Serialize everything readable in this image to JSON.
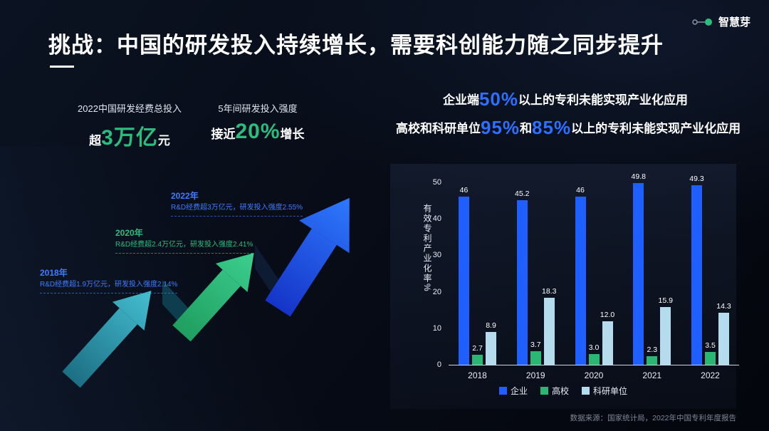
{
  "slide": {
    "title": "挑战：中国的研发投入持续增长，需要科创能力随之同步提升",
    "logo_text": "智慧芽",
    "footer": "数据来源：国家统计局，2022年中国专利年度报告",
    "accent_blue": "#2e6fff",
    "accent_green": "#2bbd7e"
  },
  "stats": [
    {
      "label": "2022中国研发经费总投入",
      "prefix": "超",
      "value": "3万亿",
      "suffix": "元"
    },
    {
      "label": "5年间研发投入强度",
      "prefix": "接近",
      "value": "20%",
      "suffix": "增长"
    }
  ],
  "milestones": [
    {
      "year": "2018年",
      "desc": "R&D经费超1.9万亿元，研发投入强度2.14%",
      "color": "#3e7dff"
    },
    {
      "year": "2020年",
      "desc": "R&D经费超2.4万亿元，研发投入强度2.41%",
      "color": "#2bbd7e"
    },
    {
      "year": "2022年",
      "desc": "R&D经费超3万亿元，研发投入强度2.55%",
      "color": "#3e7dff"
    }
  ],
  "headline": {
    "line1_pre": "企业端",
    "line1_big": "50%",
    "line1_post": "以上的专利未能实现产业化应用",
    "line2_pre": "高校和科研单位",
    "line2_big1": "95%",
    "line2_mid": "和",
    "line2_big2": "85%",
    "line2_post": "以上的专利未能实现产业化应用"
  },
  "chart_data": {
    "type": "bar",
    "categories": [
      "2018",
      "2019",
      "2020",
      "2021",
      "2022"
    ],
    "series": [
      {
        "name": "企业",
        "color": "#1f5fff",
        "values": [
          46,
          45.2,
          46,
          49.8,
          49.3
        ],
        "labels": [
          "46",
          "45.2",
          "46",
          "49.8",
          "49.3"
        ]
      },
      {
        "name": "高校",
        "color": "#2bb673",
        "values": [
          2.7,
          3.7,
          3.0,
          2.3,
          3.5
        ],
        "labels": [
          "2.7",
          "3.7",
          "3.0",
          "2.3",
          "3.5"
        ]
      },
      {
        "name": "科研单位",
        "color": "#b5dcec",
        "values": [
          8.9,
          18.3,
          12.0,
          15.9,
          14.3
        ],
        "labels": [
          "8.9",
          "18.3",
          "12.0",
          "15.9",
          "14.3"
        ]
      }
    ],
    "title": "",
    "xlabel": "",
    "ylabel": "有效专利产业化率%",
    "ylim": [
      0,
      50
    ],
    "yticks": [
      0,
      10,
      20,
      30,
      40,
      50
    ],
    "legend_position": "bottom",
    "grid": false
  }
}
